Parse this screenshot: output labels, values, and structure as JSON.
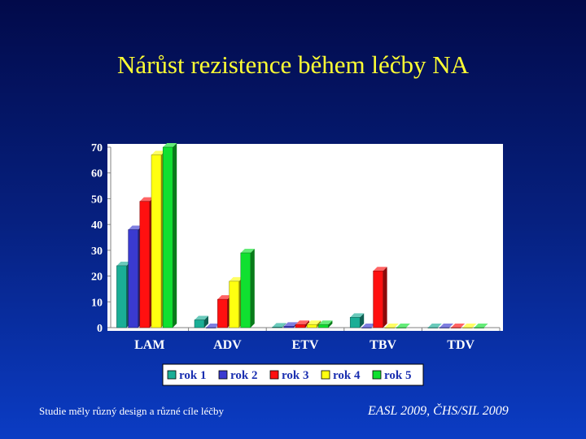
{
  "slide": {
    "title": "Nárůst rezistence během léčby NA",
    "footer_left": "Studie měly různý design a různé cíle léčby",
    "footer_right": "EASL 2009, ČHS/SIL 2009"
  },
  "chart_data": {
    "type": "bar",
    "categories": [
      "LAM",
      "ADV",
      "ETV",
      "TBV",
      "TDV"
    ],
    "series": [
      {
        "name": "rok 1",
        "values": [
          24,
          3,
          0.2,
          4,
          0
        ],
        "color": "#1aae96"
      },
      {
        "name": "rok 2",
        "values": [
          38,
          0,
          0.5,
          0,
          0
        ],
        "color": "#3a3ad0"
      },
      {
        "name": "rok 3",
        "values": [
          49,
          11,
          1.2,
          22,
          0
        ],
        "color": "#ff1010"
      },
      {
        "name": "rok 4",
        "values": [
          67,
          18,
          1.2,
          0,
          0
        ],
        "color": "#ffff10"
      },
      {
        "name": "rok 5",
        "values": [
          70,
          29,
          1.2,
          0,
          0
        ],
        "color": "#10e030"
      }
    ],
    "ylim": [
      0,
      70
    ],
    "yticks": [
      "0",
      "10",
      "20",
      "30",
      "40",
      "50",
      "60",
      "70"
    ],
    "legend_position": "bottom",
    "grid": false,
    "style": "3d-bars"
  }
}
